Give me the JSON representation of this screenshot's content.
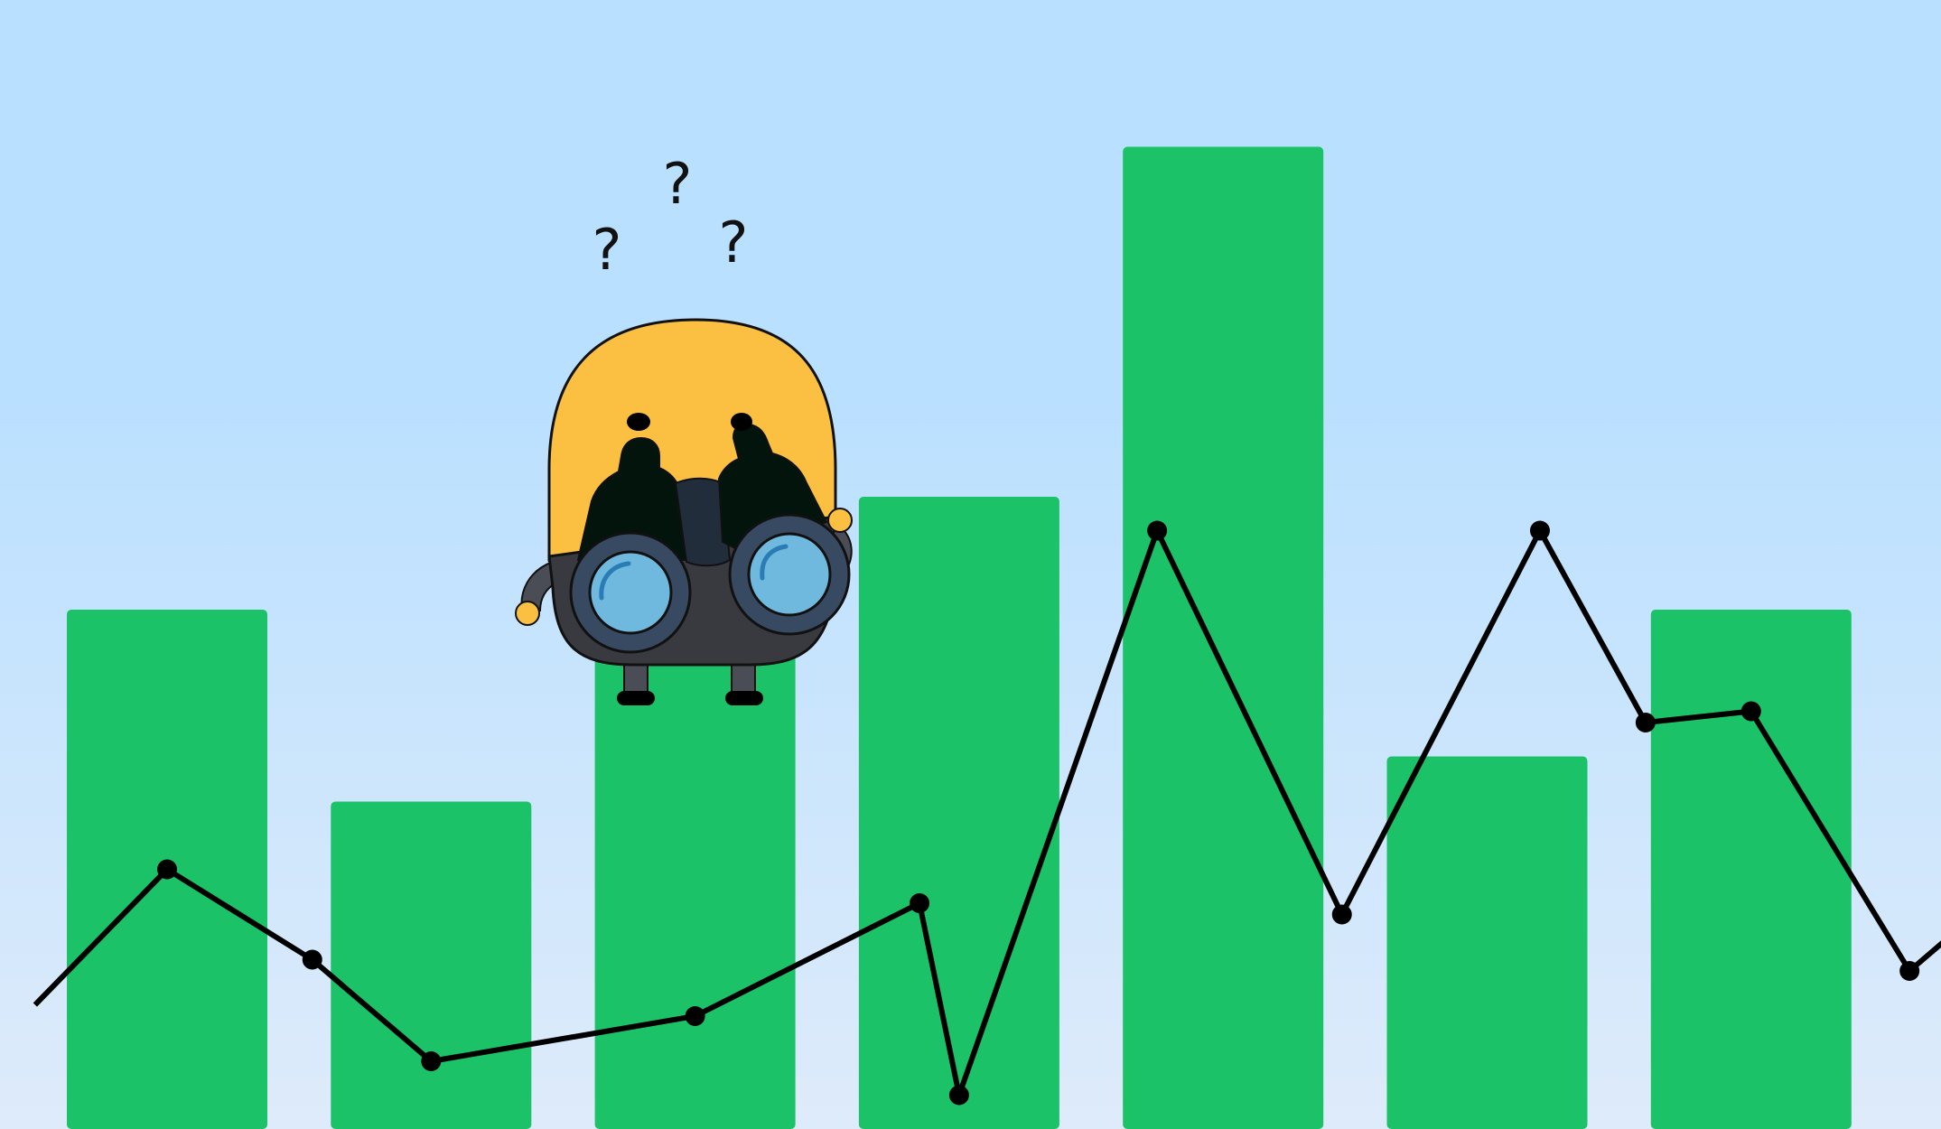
{
  "scene": {
    "background_top": "#bae0ff",
    "background_bottom": "#deebfa",
    "bar_color": "#1bc267",
    "line_color": "#000000",
    "character_body_color": "#fbbf42",
    "character_suit_color": "#383a40",
    "binocular_lens_color": "#6fb9de",
    "question_marks": [
      "?",
      "?",
      "?"
    ]
  },
  "chart_data": {
    "type": "bar",
    "title": "",
    "xlabel": "",
    "ylabel": "",
    "bars": {
      "values": [
        46,
        29,
        46,
        56,
        87,
        33,
        46
      ],
      "ylim": [
        0,
        100
      ]
    },
    "line": {
      "x": [
        -0.5,
        0.0,
        0.55,
        1.0,
        2.0,
        2.85,
        3.0,
        3.75,
        4.45,
        5.2,
        5.6,
        6.0,
        6.6,
        7.0
      ],
      "values": [
        11,
        23,
        15,
        6,
        10,
        20,
        3,
        53,
        19,
        53,
        36,
        37,
        14,
        22
      ],
      "ylim": [
        0,
        100
      ]
    }
  }
}
